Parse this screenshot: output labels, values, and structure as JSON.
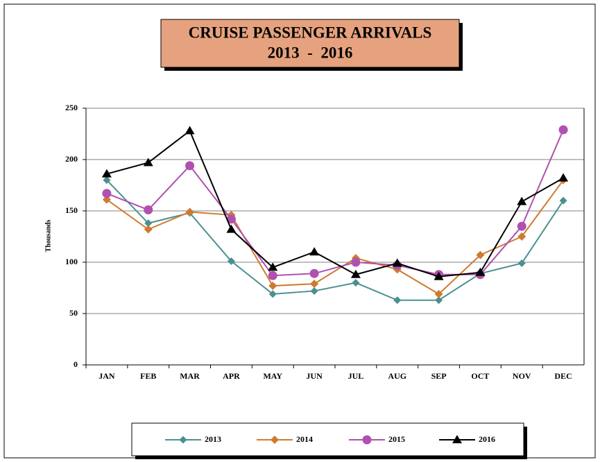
{
  "chart_data": {
    "type": "line",
    "title": "CRUISE PASSENGER ARRIVALS",
    "subtitle": "2013  -  2016",
    "y_label": "Thousands",
    "categories": [
      "JAN",
      "FEB",
      "MAR",
      "APR",
      "MAY",
      "JUN",
      "JUL",
      "AUG",
      "SEP",
      "OCT",
      "NOV",
      "DEC"
    ],
    "series": [
      {
        "name": "2013",
        "color": "#4a9090",
        "marker": "diamond",
        "values": [
          180,
          138,
          148,
          101,
          69,
          72,
          80,
          63,
          63,
          89,
          99,
          160
        ]
      },
      {
        "name": "2014",
        "color": "#d07a30",
        "marker": "diamond",
        "values": [
          161,
          132,
          149,
          146,
          77,
          79,
          104,
          93,
          69,
          107,
          125,
          180
        ]
      },
      {
        "name": "2015",
        "color": "#b050b0",
        "marker": "circle",
        "values": [
          167,
          151,
          194,
          142,
          87,
          89,
          100,
          97,
          88,
          88,
          135,
          229
        ]
      },
      {
        "name": "2016",
        "color": "#000000",
        "marker": "triangle",
        "values": [
          186,
          197,
          228,
          132,
          95,
          110,
          88,
          99,
          86,
          90,
          159,
          182
        ]
      }
    ],
    "ylim": [
      0,
      250
    ],
    "yticks": [
      0,
      50,
      100,
      150,
      200,
      250
    ],
    "grid": true,
    "legend": "bottom"
  }
}
